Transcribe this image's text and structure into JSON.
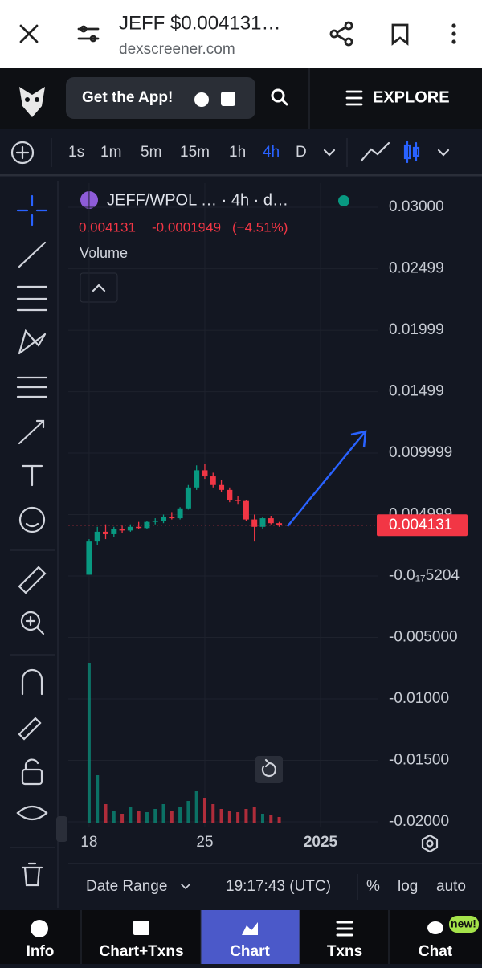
{
  "browser": {
    "title": "JEFF $0.004131…",
    "url": "dexscreener.com"
  },
  "nav": {
    "get_app": "Get the App!",
    "explore": "EXPLORE"
  },
  "toolbar": {
    "intervals": [
      "1s",
      "1m",
      "5m",
      "15m",
      "1h",
      "4h",
      "D"
    ],
    "active_interval_index": 5
  },
  "legend": {
    "pair": "JEFF/WPOL … · 4h · d…",
    "price": "0.004131",
    "change": "-0.0001949",
    "change_pct": "(−4.51%)",
    "volume": "Volume"
  },
  "chart_data": {
    "type": "candlestick",
    "x": [
      18,
      18.5,
      19,
      19.5,
      20,
      20.5,
      21,
      21.5,
      22,
      22.5,
      23,
      23.5,
      24,
      24.5,
      25,
      25.5,
      26,
      26.5,
      27,
      27.5,
      28,
      28.5,
      29,
      29.5
    ],
    "candles": [
      {
        "open": 0.0001,
        "high": 0.003,
        "low": 0.0001,
        "close": 0.0028
      },
      {
        "open": 0.0028,
        "high": 0.004,
        "low": 0.0025,
        "close": 0.0036
      },
      {
        "open": 0.0036,
        "high": 0.0042,
        "low": 0.003,
        "close": 0.0034
      },
      {
        "open": 0.0034,
        "high": 0.004,
        "low": 0.0032,
        "close": 0.0038
      },
      {
        "open": 0.0038,
        "high": 0.0041,
        "low": 0.0035,
        "close": 0.0037
      },
      {
        "open": 0.0037,
        "high": 0.0042,
        "low": 0.0036,
        "close": 0.004
      },
      {
        "open": 0.004,
        "high": 0.0044,
        "low": 0.0038,
        "close": 0.0039
      },
      {
        "open": 0.0039,
        "high": 0.0045,
        "low": 0.0038,
        "close": 0.0044
      },
      {
        "open": 0.0044,
        "high": 0.0047,
        "low": 0.0042,
        "close": 0.0045
      },
      {
        "open": 0.0045,
        "high": 0.005,
        "low": 0.0043,
        "close": 0.0048
      },
      {
        "open": 0.0048,
        "high": 0.0052,
        "low": 0.0046,
        "close": 0.0047
      },
      {
        "open": 0.0047,
        "high": 0.0056,
        "low": 0.0046,
        "close": 0.0055
      },
      {
        "open": 0.0055,
        "high": 0.0074,
        "low": 0.0054,
        "close": 0.0072
      },
      {
        "open": 0.0072,
        "high": 0.009,
        "low": 0.007,
        "close": 0.0086
      },
      {
        "open": 0.0086,
        "high": 0.0091,
        "low": 0.0079,
        "close": 0.0081
      },
      {
        "open": 0.0081,
        "high": 0.0084,
        "low": 0.0072,
        "close": 0.0074
      },
      {
        "open": 0.0074,
        "high": 0.0078,
        "low": 0.0068,
        "close": 0.007
      },
      {
        "open": 0.007,
        "high": 0.0072,
        "low": 0.006,
        "close": 0.0062
      },
      {
        "open": 0.0062,
        "high": 0.0065,
        "low": 0.0058,
        "close": 0.0061
      },
      {
        "open": 0.0061,
        "high": 0.0062,
        "low": 0.0045,
        "close": 0.0046
      },
      {
        "open": 0.0046,
        "high": 0.005,
        "low": 0.0028,
        "close": 0.004
      },
      {
        "open": 0.004,
        "high": 0.0048,
        "low": 0.0038,
        "close": 0.0047
      },
      {
        "open": 0.0047,
        "high": 0.0049,
        "low": 0.0042,
        "close": 0.0043
      },
      {
        "open": 0.0043,
        "high": 0.0044,
        "low": 0.004,
        "close": 0.004131
      }
    ],
    "volume": [
      100,
      30,
      12,
      8,
      6,
      10,
      8,
      7,
      9,
      12,
      8,
      10,
      14,
      20,
      16,
      12,
      9,
      8,
      7,
      9,
      10,
      6,
      5,
      4
    ],
    "up_color": "#089981",
    "down_color": "#f23645",
    "xlim": [
      16.74,
      35.45
    ],
    "xticks": [
      18,
      25,
      {
        "value": 32,
        "label": "2025"
      }
    ],
    "ylim": [
      -0.02046,
      0.03196
    ],
    "yticks": [
      {
        "value": 0.03,
        "label": "0.03000"
      },
      0.02499,
      0.01999,
      0.01499,
      0.009999,
      0.004999,
      {
        "value": -5.204e-18,
        "label": "-0.0₁₇5204"
      },
      {
        "value": -0.005,
        "label": "-0.005000"
      },
      {
        "value": -0.01,
        "label": "-0.01000"
      },
      {
        "value": -0.015,
        "label": "-0.01500"
      },
      {
        "value": -0.02,
        "label": "-0.02000"
      }
    ],
    "last_price": {
      "value": 0.004131,
      "label": "0.004131"
    },
    "grid": true
  },
  "footer": {
    "date_range": "Date Range",
    "time": "19:17:43 (UTC)",
    "options": [
      "%",
      "log",
      "auto"
    ]
  },
  "tabs": {
    "items": [
      "Info",
      "Chart+Txns",
      "Chart",
      "Txns",
      "Chat"
    ],
    "active_index": 2,
    "badge": "new!"
  }
}
